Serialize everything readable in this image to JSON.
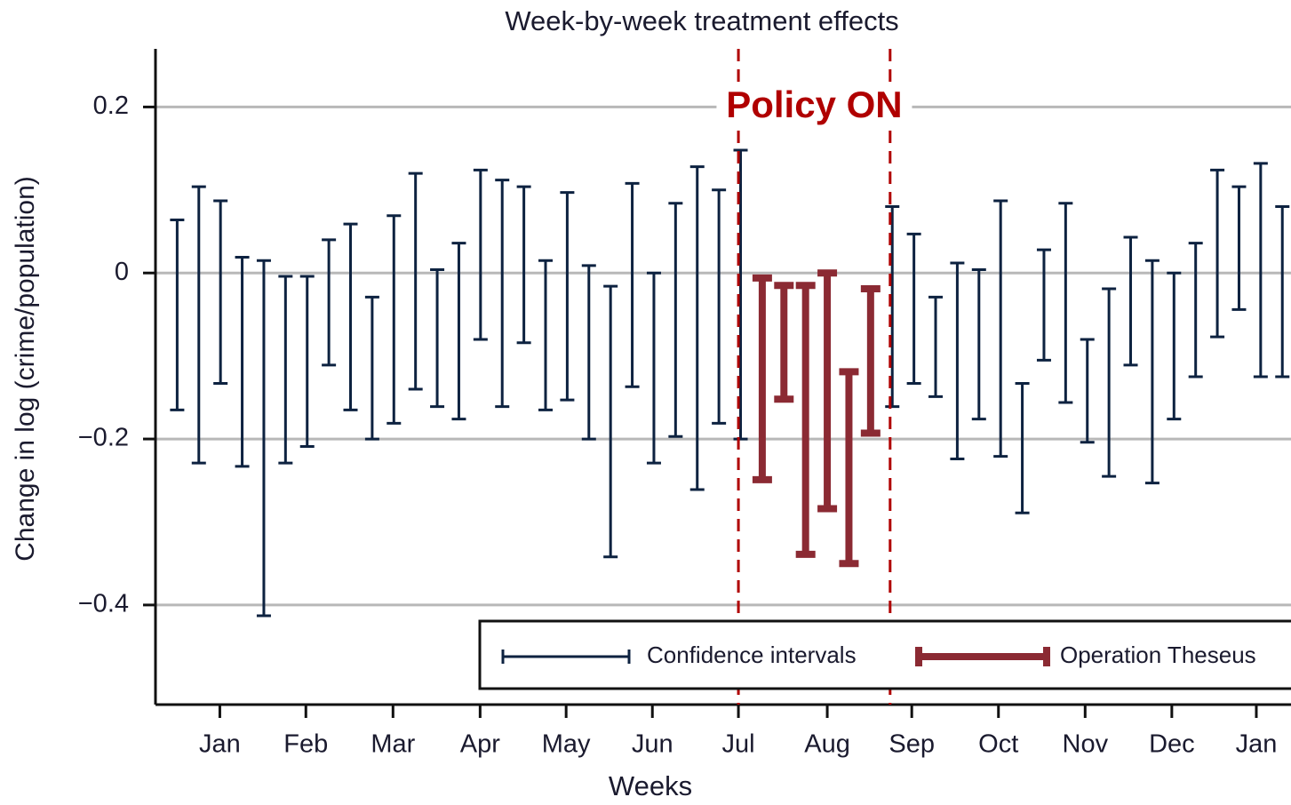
{
  "chart_data": {
    "type": "interval",
    "title": "Week-by-week treatment effects",
    "xlabel": "Weeks",
    "ylabel": "Change in log (crime/population)",
    "xlim": [
      0,
      52.4
    ],
    "ylim": [
      -0.52,
      0.27
    ],
    "yticks": [
      0.2,
      0,
      {
        "value": -0.2,
        "label": "−0.2"
      },
      {
        "value": -0.4,
        "label": "−0.4"
      }
    ],
    "xticks": [
      {
        "value": 2.97,
        "label": "Jan"
      },
      {
        "value": 6.94,
        "label": "Feb"
      },
      {
        "value": 10.96,
        "label": "Mar"
      },
      {
        "value": 14.98,
        "label": "Apr"
      },
      {
        "value": 18.95,
        "label": "May"
      },
      {
        "value": 22.93,
        "label": "Jun"
      },
      {
        "value": 26.9,
        "label": "Jul"
      },
      {
        "value": 31.0,
        "label": "Aug"
      },
      {
        "value": 34.9,
        "label": "Sep"
      },
      {
        "value": 38.9,
        "label": "Oct"
      },
      {
        "value": 42.9,
        "label": "Nov"
      },
      {
        "value": 46.9,
        "label": "Dec"
      },
      {
        "value": 50.8,
        "label": "Jan"
      }
    ],
    "grid": true,
    "vlines": [
      26.9,
      33.9
    ],
    "vline_color": "#b00000",
    "annotation": "Policy ON",
    "series": [
      {
        "name": "Confidence intervals",
        "color": "#0d2240",
        "x": [
          1,
          2,
          3,
          4,
          5,
          6,
          7,
          8,
          9,
          10,
          11,
          12,
          13,
          14,
          15,
          16,
          17,
          18,
          19,
          20,
          21,
          22,
          23,
          24,
          25,
          26,
          27,
          34,
          35,
          36,
          37,
          38,
          39,
          40,
          41,
          42,
          43,
          44,
          45,
          46,
          47,
          48,
          49,
          50,
          51,
          52
        ],
        "high": [
          0.064,
          0.104,
          0.087,
          0.019,
          0.015,
          -0.004,
          -0.004,
          0.04,
          0.059,
          -0.029,
          0.069,
          0.12,
          0.004,
          0.036,
          0.124,
          0.112,
          0.104,
          0.015,
          0.097,
          0.009,
          -0.016,
          0.108,
          0,
          0.084,
          0.128,
          0.1,
          0.148,
          0.08,
          0.047,
          -0.029,
          0.012,
          0.004,
          0.087,
          -0.133,
          0.028,
          0.084,
          -0.08,
          -0.019,
          0.043,
          0.015,
          0,
          0.036,
          0.124,
          0.104,
          0.132,
          0.08
        ],
        "low": [
          -0.165,
          -0.229,
          -0.133,
          -0.233,
          -0.413,
          -0.229,
          -0.209,
          -0.111,
          -0.165,
          -0.2,
          -0.181,
          -0.14,
          -0.161,
          -0.176,
          -0.08,
          -0.161,
          -0.084,
          -0.165,
          -0.153,
          -0.2,
          -0.342,
          -0.137,
          -0.229,
          -0.197,
          -0.261,
          -0.181,
          -0.2,
          -0.161,
          -0.133,
          -0.149,
          -0.224,
          -0.176,
          -0.221,
          -0.289,
          -0.105,
          -0.156,
          -0.204,
          -0.245,
          -0.111,
          -0.253,
          -0.176,
          -0.125,
          -0.077,
          -0.044,
          -0.125,
          -0.125
        ]
      },
      {
        "name": "Operation Theseus",
        "color": "#8b2a33",
        "x": [
          28,
          29,
          30,
          31,
          32,
          33
        ],
        "high": [
          -0.006,
          -0.015,
          -0.015,
          0,
          -0.119,
          -0.019
        ],
        "low": [
          -0.249,
          -0.152,
          -0.339,
          -0.284,
          -0.35,
          -0.193
        ]
      }
    ]
  }
}
